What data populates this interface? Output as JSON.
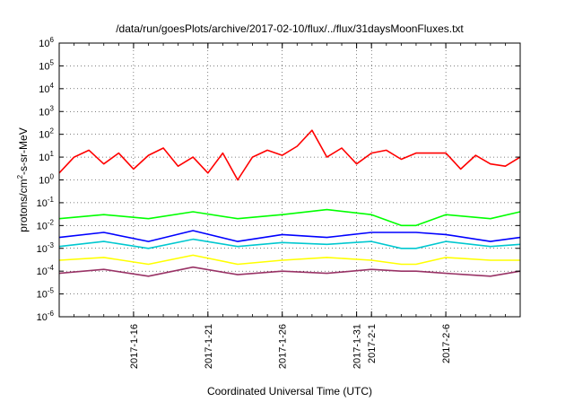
{
  "chart_data": {
    "type": "line",
    "title": "/data/run/goesPlots/archive/2017-02-10/flux/../flux/31daysMoonFluxes.txt",
    "xlabel": "Coordinated Universal Time (UTC)",
    "ylabel": {
      "base": "protons/cm",
      "sup": "2",
      "rest": "-s-sr-MeV"
    },
    "yscale": "log",
    "ylim": [
      1e-06,
      1000000.0
    ],
    "xlim": [
      "2017-01-11",
      "2017-02-11"
    ],
    "grid": true,
    "legend": "none",
    "y_ticks": [
      {
        "exp": -6
      },
      {
        "exp": -5
      },
      {
        "exp": -4
      },
      {
        "exp": -3
      },
      {
        "exp": -2
      },
      {
        "exp": -1
      },
      {
        "exp": 0
      },
      {
        "exp": 1
      },
      {
        "exp": 2
      },
      {
        "exp": 3
      },
      {
        "exp": 4
      },
      {
        "exp": 5
      },
      {
        "exp": 6
      }
    ],
    "y_tick_base": "10",
    "x_ticks": [
      {
        "date": "2017-01-16",
        "label": "2017-1-16"
      },
      {
        "date": "2017-01-21",
        "label": "2017-1-21"
      },
      {
        "date": "2017-01-26",
        "label": "2017-1-26"
      },
      {
        "date": "2017-01-31",
        "label": "2017-1-31"
      },
      {
        "date": "2017-02-01",
        "label": "2017-2-1"
      },
      {
        "date": "2017-02-06",
        "label": "2017-2-6"
      }
    ],
    "series": [
      {
        "color": "#ff0000",
        "x": [
          "2017-01-11",
          "2017-01-12",
          "2017-01-13",
          "2017-01-14",
          "2017-01-15",
          "2017-01-16",
          "2017-01-17",
          "2017-01-18",
          "2017-01-19",
          "2017-01-20",
          "2017-01-21",
          "2017-01-22",
          "2017-01-23",
          "2017-01-24",
          "2017-01-25",
          "2017-01-26",
          "2017-01-27",
          "2017-01-28",
          "2017-01-29",
          "2017-01-30",
          "2017-01-31",
          "2017-02-01",
          "2017-02-02",
          "2017-02-03",
          "2017-02-04",
          "2017-02-05",
          "2017-02-06",
          "2017-02-07",
          "2017-02-08",
          "2017-02-09",
          "2017-02-10",
          "2017-02-11"
        ],
        "values": [
          2,
          10,
          20,
          5,
          15,
          3,
          12,
          25,
          4,
          10,
          2,
          15,
          1,
          10,
          20,
          12,
          30,
          150,
          10,
          25,
          5,
          15,
          20,
          8,
          15,
          15,
          15,
          3,
          12,
          5,
          4,
          10
        ]
      },
      {
        "color": "#00ff00",
        "x": [
          "2017-01-11",
          "2017-01-14",
          "2017-01-17",
          "2017-01-20",
          "2017-01-23",
          "2017-01-26",
          "2017-01-29",
          "2017-02-01",
          "2017-02-03",
          "2017-02-04",
          "2017-02-06",
          "2017-02-09",
          "2017-02-11"
        ],
        "values": [
          0.02,
          0.03,
          0.02,
          0.04,
          0.02,
          0.03,
          0.05,
          0.03,
          0.01,
          0.01,
          0.03,
          0.02,
          0.04
        ]
      },
      {
        "color": "#0000ff",
        "x": [
          "2017-01-11",
          "2017-01-14",
          "2017-01-17",
          "2017-01-20",
          "2017-01-23",
          "2017-01-26",
          "2017-01-29",
          "2017-02-01",
          "2017-02-03",
          "2017-02-04",
          "2017-02-06",
          "2017-02-09",
          "2017-02-11"
        ],
        "values": [
          0.003,
          0.005,
          0.002,
          0.006,
          0.002,
          0.004,
          0.003,
          0.005,
          0.005,
          0.005,
          0.004,
          0.002,
          0.003
        ]
      },
      {
        "color": "#00c8d0",
        "x": [
          "2017-01-11",
          "2017-01-14",
          "2017-01-17",
          "2017-01-20",
          "2017-01-23",
          "2017-01-26",
          "2017-01-29",
          "2017-02-01",
          "2017-02-03",
          "2017-02-04",
          "2017-02-06",
          "2017-02-09",
          "2017-02-11"
        ],
        "values": [
          0.0012,
          0.002,
          0.001,
          0.0025,
          0.0012,
          0.0018,
          0.0015,
          0.002,
          0.001,
          0.001,
          0.002,
          0.0012,
          0.0015
        ]
      },
      {
        "color": "#ffff00",
        "x": [
          "2017-01-11",
          "2017-01-14",
          "2017-01-17",
          "2017-01-20",
          "2017-01-23",
          "2017-01-26",
          "2017-01-29",
          "2017-02-01",
          "2017-02-03",
          "2017-02-04",
          "2017-02-06",
          "2017-02-09",
          "2017-02-11"
        ],
        "values": [
          0.0003,
          0.0004,
          0.0002,
          0.0005,
          0.0002,
          0.0003,
          0.0004,
          0.0003,
          0.0002,
          0.0002,
          0.0004,
          0.0003,
          0.0003
        ]
      },
      {
        "color": "#993366",
        "x": [
          "2017-01-11",
          "2017-01-14",
          "2017-01-17",
          "2017-01-20",
          "2017-01-23",
          "2017-01-26",
          "2017-01-29",
          "2017-02-01",
          "2017-02-03",
          "2017-02-04",
          "2017-02-06",
          "2017-02-09",
          "2017-02-11"
        ],
        "values": [
          8e-05,
          0.00012,
          6e-05,
          0.00015,
          7e-05,
          0.0001,
          8e-05,
          0.00012,
          0.0001,
          0.0001,
          8e-05,
          6e-05,
          0.0001
        ]
      }
    ]
  }
}
